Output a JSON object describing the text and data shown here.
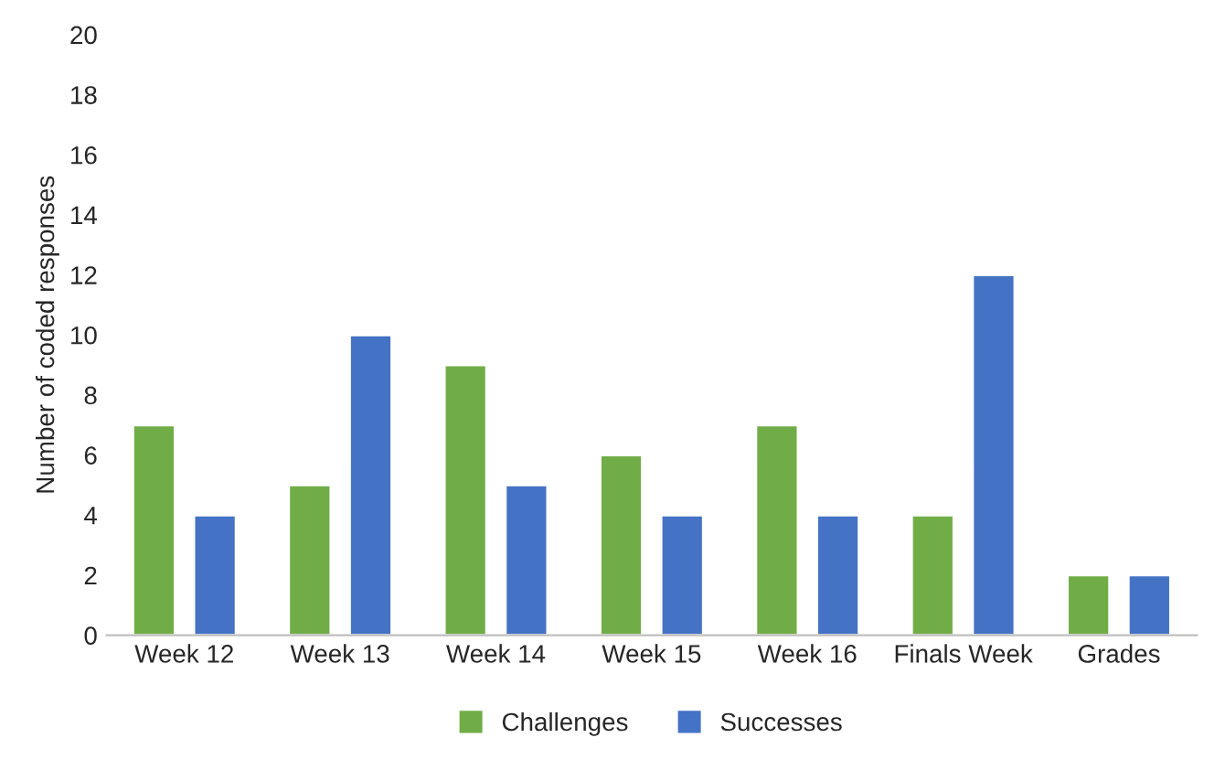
{
  "chart_data": {
    "type": "bar",
    "ylabel": "Number of coded responses",
    "categories": [
      "Week 12",
      "Week 13",
      "Week 14",
      "Week 15",
      "Week 16",
      "Finals Week",
      "Grades"
    ],
    "series": [
      {
        "name": "Challenges",
        "color": "#70ad47",
        "values": [
          7,
          5,
          9,
          6,
          7,
          4,
          2
        ]
      },
      {
        "name": "Successes",
        "color": "#4472c4",
        "values": [
          4,
          10,
          5,
          4,
          4,
          12,
          2
        ]
      }
    ],
    "ylim": [
      0,
      20
    ],
    "yticks": [
      0,
      2,
      4,
      6,
      8,
      10,
      12,
      14,
      16,
      18,
      20
    ],
    "grid": false,
    "legend": "bottom"
  }
}
